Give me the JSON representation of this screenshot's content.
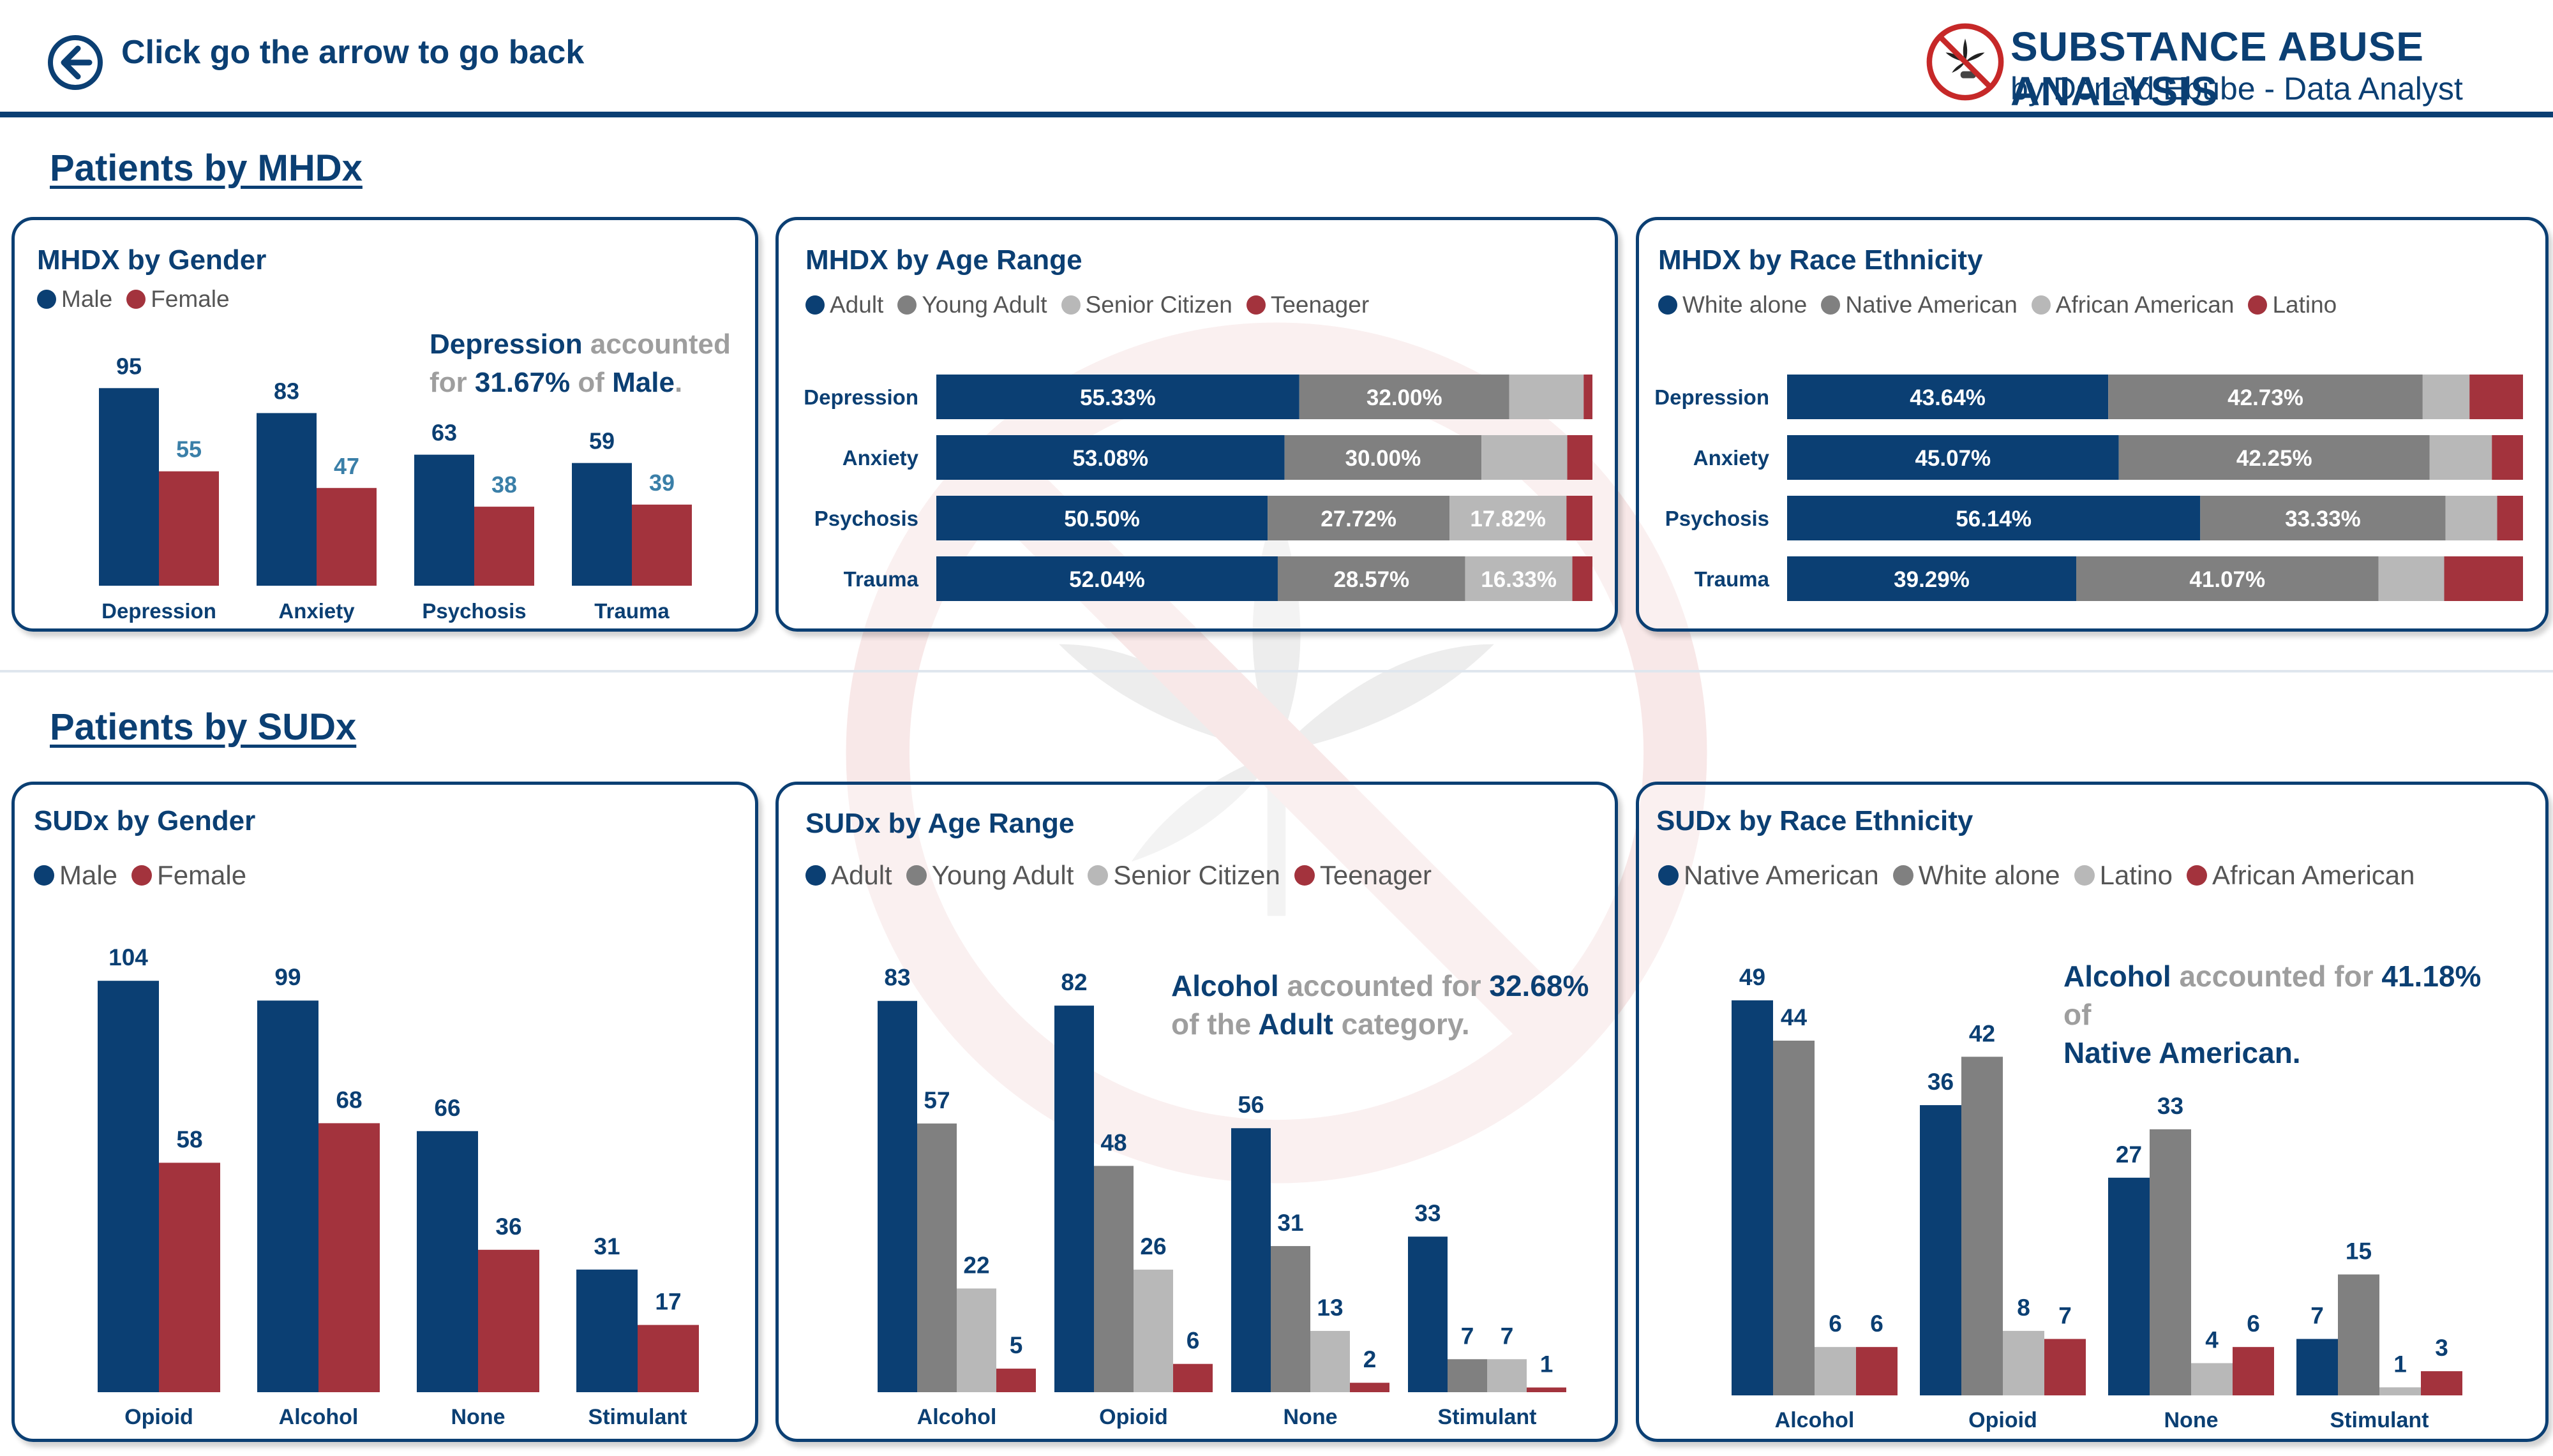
{
  "colors": {
    "navy": "#0b3f73",
    "red": "#a3333d",
    "grey_dark": "#808080",
    "grey_light": "#b8b8b8"
  },
  "header": {
    "back_text": "Click go the arrow to go back",
    "title": "SUBSTANCE ABUSE ANALYSIS",
    "subtitle": "by Donald Ebube - Data Analyst"
  },
  "sections": {
    "mhdx": "Patients by MHDx",
    "sudx": "Patients by SUDx"
  },
  "cards": {
    "mhdx_gender": {
      "title": "MHDX by Gender",
      "legend": [
        "Male",
        "Female"
      ],
      "insight": {
        "a": "Depression",
        "b": " accounted",
        "c": "for ",
        "d": "31.67%",
        "e": " of ",
        "f": "Male",
        "g": "."
      }
    },
    "mhdx_age": {
      "title": "MHDX by Age Range",
      "legend": [
        "Adult",
        "Young Adult",
        "Senior Citizen",
        "Teenager"
      ]
    },
    "mhdx_race": {
      "title": "MHDX by Race Ethnicity",
      "legend": [
        "White alone",
        "Native American",
        "African American",
        "Latino"
      ]
    },
    "sudx_gender": {
      "title": "SUDx by Gender",
      "legend": [
        "Male",
        "Female"
      ]
    },
    "sudx_age": {
      "title": "SUDx by Age Range",
      "legend": [
        "Adult",
        "Young Adult",
        "Senior Citizen",
        "Teenager"
      ],
      "insight": {
        "a": "Alcohol",
        "b": " accounted for ",
        "c": "32.68%",
        "d": "of the ",
        "e": "Adult",
        "f": " category."
      }
    },
    "sudx_race": {
      "title": "SUDx by Race Ethnicity",
      "legend": [
        "Native American",
        "White alone",
        "Latino",
        "African American"
      ],
      "insight": {
        "a": "Alcohol",
        "b": " accounted for ",
        "c": "41.18%",
        "d": " of",
        "e": "Native American."
      }
    }
  },
  "chart_data": [
    {
      "id": "mhdx_gender",
      "type": "bar",
      "title": "MHDX by Gender",
      "categories": [
        "Depression",
        "Anxiety",
        "Psychosis",
        "Trauma"
      ],
      "series": [
        {
          "name": "Male",
          "color": "#0b3f73",
          "values": [
            95,
            83,
            63,
            59
          ]
        },
        {
          "name": "Female",
          "color": "#a3333d",
          "values": [
            55,
            47,
            38,
            39
          ]
        }
      ],
      "ylim": [
        0,
        100
      ]
    },
    {
      "id": "mhdx_age",
      "type": "bar",
      "orientation": "horizontal-stacked-100",
      "title": "MHDX by Age Range",
      "categories": [
        "Depression",
        "Anxiety",
        "Psychosis",
        "Trauma"
      ],
      "series": [
        {
          "name": "Adult",
          "color": "#0b3f73",
          "values": [
            55.33,
            53.08,
            50.5,
            52.04
          ],
          "labels": [
            "55.33%",
            "53.08%",
            "50.50%",
            "52.04%"
          ]
        },
        {
          "name": "Young Adult",
          "color": "#808080",
          "values": [
            32.0,
            30.0,
            27.72,
            28.57
          ],
          "labels": [
            "32.00%",
            "30.00%",
            "27.72%",
            "28.57%"
          ]
        },
        {
          "name": "Senior Citizen",
          "color": "#b8b8b8",
          "values": [
            11.33,
            13.08,
            17.82,
            16.33
          ],
          "labels": [
            "",
            "",
            "17.82%",
            "16.33%"
          ]
        },
        {
          "name": "Teenager",
          "color": "#a3333d",
          "values": [
            1.34,
            3.84,
            3.96,
            3.06
          ],
          "labels": [
            "",
            "",
            "",
            ""
          ]
        }
      ]
    },
    {
      "id": "mhdx_race",
      "type": "bar",
      "orientation": "horizontal-stacked-100",
      "title": "MHDX by Race Ethnicity",
      "categories": [
        "Depression",
        "Anxiety",
        "Psychosis",
        "Trauma"
      ],
      "series": [
        {
          "name": "White alone",
          "color": "#0b3f73",
          "values": [
            43.64,
            45.07,
            56.14,
            39.29
          ],
          "labels": [
            "43.64%",
            "45.07%",
            "56.14%",
            "39.29%"
          ]
        },
        {
          "name": "Native American",
          "color": "#808080",
          "values": [
            42.73,
            42.25,
            33.33,
            41.07
          ],
          "labels": [
            "42.73%",
            "42.25%",
            "33.33%",
            "41.07%"
          ]
        },
        {
          "name": "African American",
          "color": "#b8b8b8",
          "values": [
            6.36,
            8.45,
            7.02,
            8.93
          ],
          "labels": [
            "",
            "",
            "",
            ""
          ]
        },
        {
          "name": "Latino",
          "color": "#a3333d",
          "values": [
            7.27,
            4.23,
            3.51,
            10.71
          ],
          "labels": [
            "",
            "",
            "",
            ""
          ]
        }
      ]
    },
    {
      "id": "sudx_gender",
      "type": "bar",
      "title": "SUDx by Gender",
      "categories": [
        "Opioid",
        "Alcohol",
        "None",
        "Stimulant"
      ],
      "series": [
        {
          "name": "Male",
          "color": "#0b3f73",
          "values": [
            104,
            99,
            66,
            31
          ]
        },
        {
          "name": "Female",
          "color": "#a3333d",
          "values": [
            58,
            68,
            36,
            17
          ]
        }
      ],
      "ylim": [
        0,
        110
      ]
    },
    {
      "id": "sudx_age",
      "type": "bar",
      "title": "SUDx by Age Range",
      "categories": [
        "Alcohol",
        "Opioid",
        "None",
        "Stimulant"
      ],
      "series": [
        {
          "name": "Adult",
          "color": "#0b3f73",
          "values": [
            83,
            82,
            56,
            33
          ]
        },
        {
          "name": "Young Adult",
          "color": "#808080",
          "values": [
            57,
            48,
            31,
            7
          ]
        },
        {
          "name": "Senior Citizen",
          "color": "#b8b8b8",
          "values": [
            22,
            26,
            13,
            7
          ]
        },
        {
          "name": "Teenager",
          "color": "#a3333d",
          "values": [
            5,
            6,
            2,
            1
          ]
        }
      ],
      "ylim": [
        0,
        90
      ]
    },
    {
      "id": "sudx_race",
      "type": "bar",
      "title": "SUDx by Race Ethnicity",
      "categories": [
        "Alcohol",
        "Opioid",
        "None",
        "Stimulant"
      ],
      "series": [
        {
          "name": "Native American",
          "color": "#0b3f73",
          "values": [
            49,
            36,
            27,
            7
          ]
        },
        {
          "name": "White alone",
          "color": "#808080",
          "values": [
            44,
            42,
            33,
            15
          ]
        },
        {
          "name": "Latino",
          "color": "#b8b8b8",
          "values": [
            6,
            8,
            4,
            1
          ]
        },
        {
          "name": "African American",
          "color": "#a3333d",
          "values": [
            6,
            7,
            6,
            3
          ]
        }
      ],
      "ylim": [
        0,
        55
      ]
    }
  ]
}
